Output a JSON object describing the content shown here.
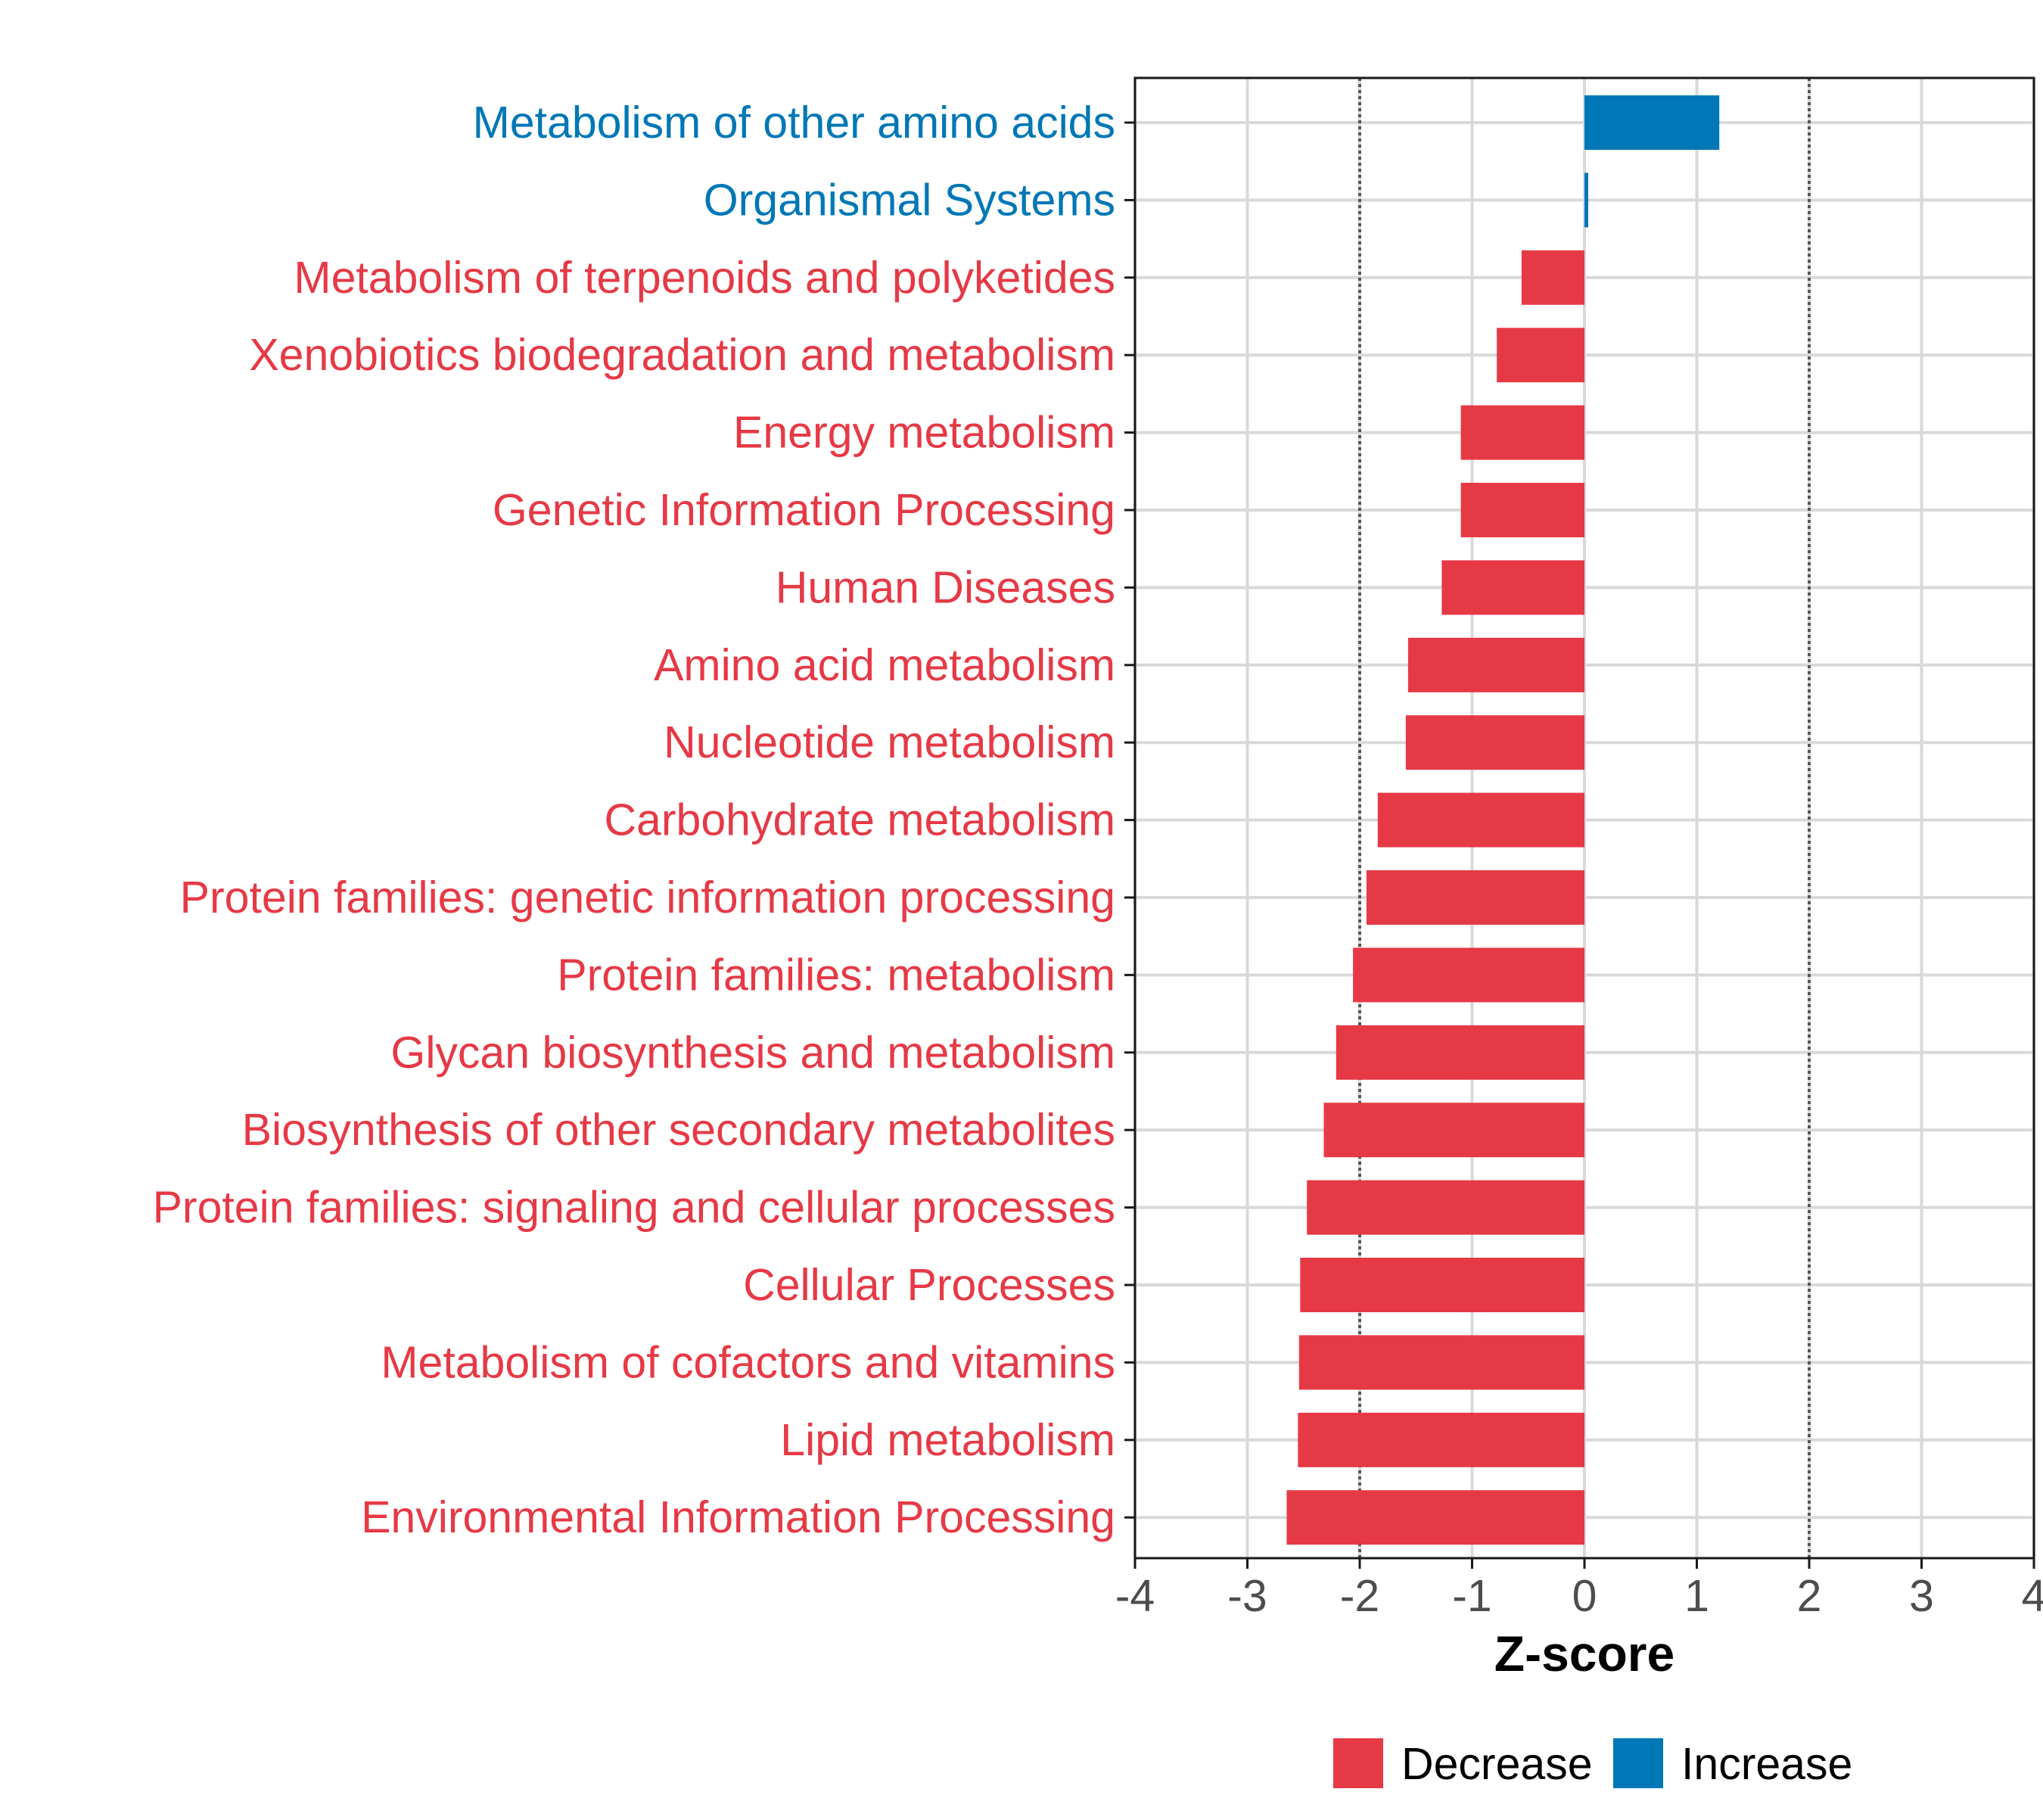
{
  "chart_data": {
    "type": "bar",
    "orientation": "horizontal",
    "xlabel": "Z-score",
    "ylabel": "",
    "xlim": [
      -4,
      4
    ],
    "xticks": [
      "-4",
      "-3",
      "-2",
      "-1",
      "0",
      "1",
      "2",
      "3",
      "4"
    ],
    "reference_lines": [
      -2,
      2
    ],
    "grid": true,
    "categories": [
      "Metabolism of other amino acids",
      "Organismal Systems",
      "Metabolism of terpenoids and polyketides",
      "Xenobiotics biodegradation and metabolism",
      "Energy metabolism",
      "Genetic Information Processing",
      "Human Diseases",
      "Amino acid metabolism",
      "Nucleotide metabolism",
      "Carbohydrate metabolism",
      "Protein families: genetic information processing",
      "Protein families: metabolism",
      "Glycan biosynthesis and metabolism",
      "Biosynthesis of other secondary metabolites",
      "Protein families: signaling and cellular processes",
      "Cellular Processes",
      "Metabolism of cofactors and vitamins",
      "Lipid metabolism",
      "Environmental Information Processing"
    ],
    "values": [
      1.2,
      0.03,
      -0.56,
      -0.78,
      -1.1,
      -1.1,
      -1.27,
      -1.57,
      -1.59,
      -1.84,
      -1.94,
      -2.06,
      -2.21,
      -2.32,
      -2.47,
      -2.53,
      -2.54,
      -2.55,
      -2.65
    ],
    "legend": {
      "placement": "bottom",
      "items": [
        {
          "label": "Decrease",
          "color": "#E63946"
        },
        {
          "label": "Increase",
          "color": "#0077B6"
        }
      ]
    },
    "colors": {
      "decrease": "#E63946",
      "increase": "#0077B6",
      "grid": "#D9D9D9",
      "axis": "#1a1a1a",
      "tick_label": "#4D4D4D",
      "reference_line": "#555555"
    }
  }
}
